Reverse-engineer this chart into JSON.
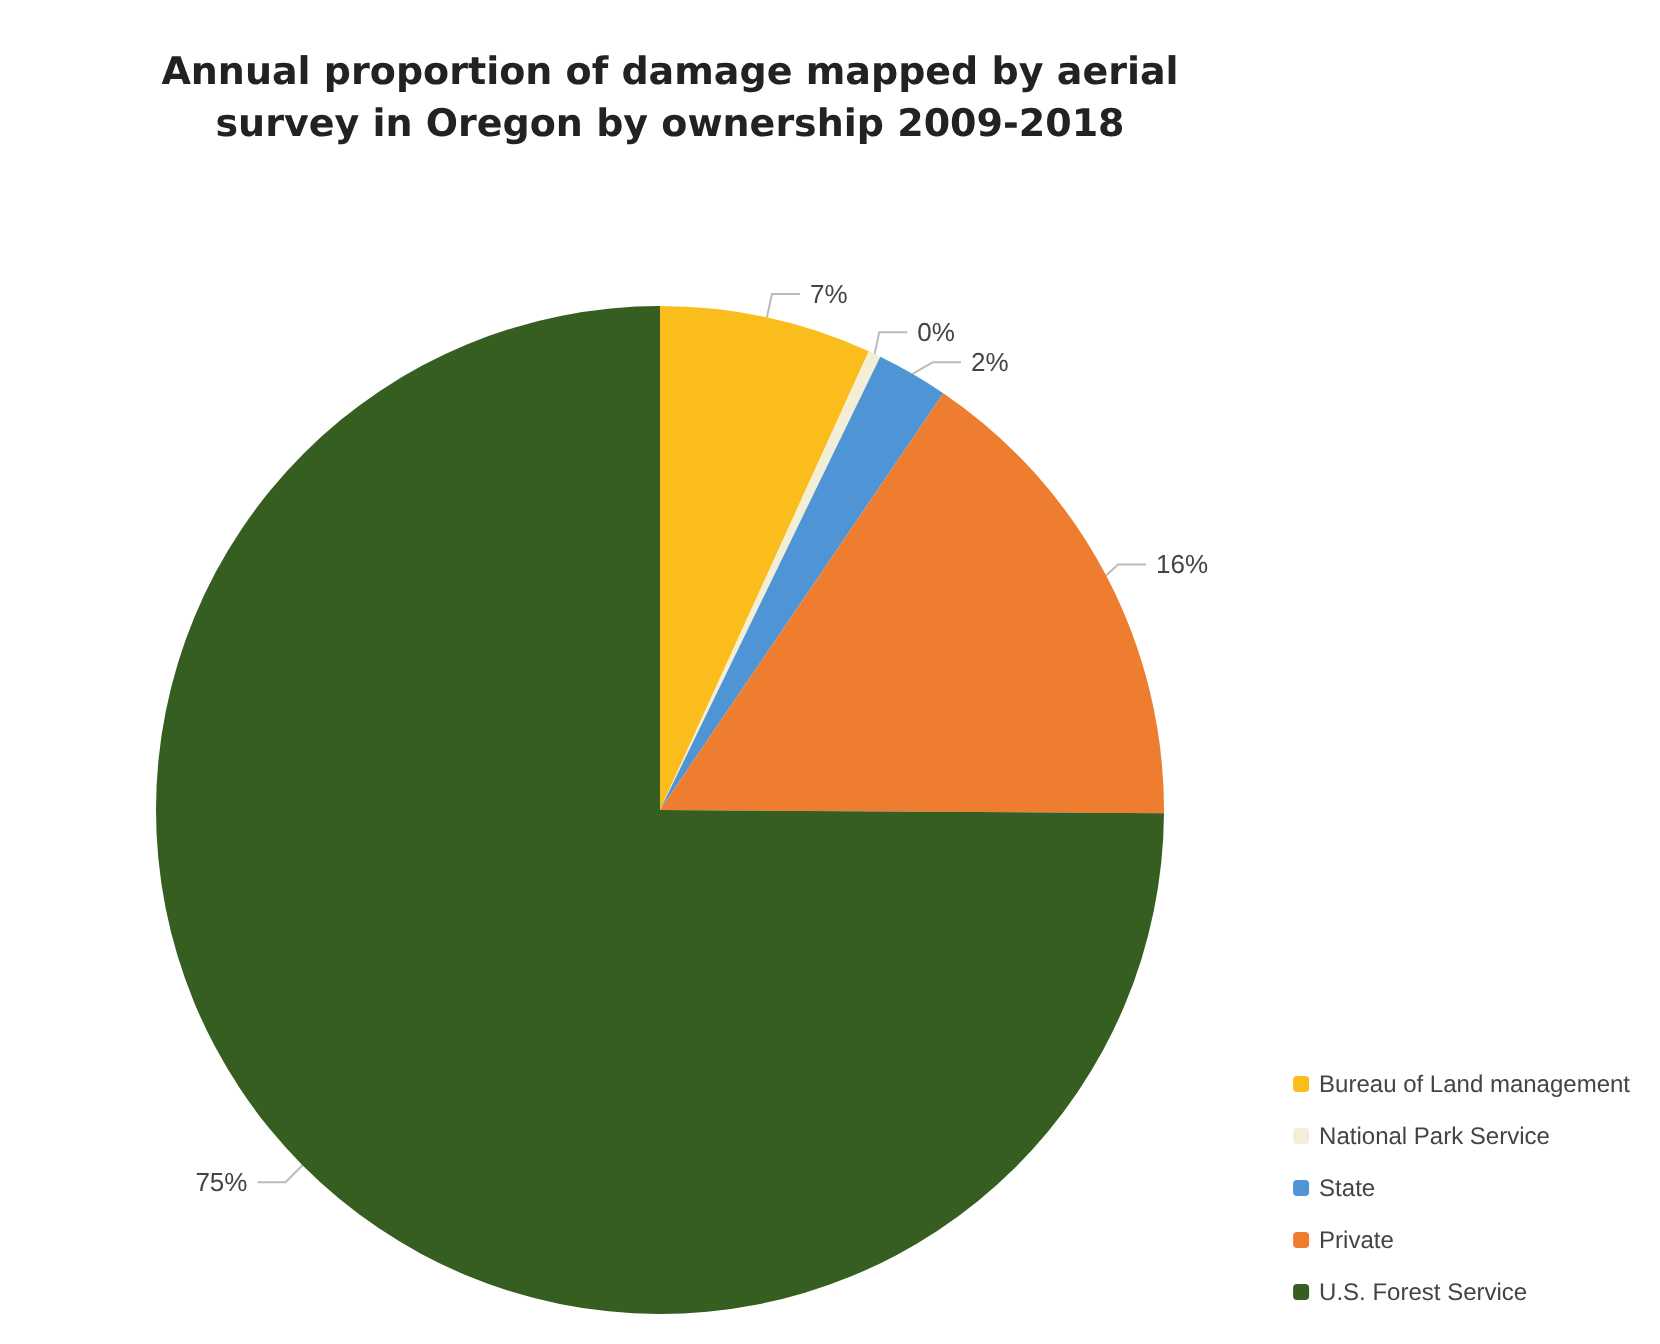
{
  "chart_data": {
    "type": "pie",
    "title": "Annual proportion of damage mapped by aerial\nsurvey in Oregon by ownership 2009-2018",
    "categories": [
      "Bureau of Land management",
      "National Park Service",
      "State",
      "Private",
      "U.S. Forest Service"
    ],
    "values": [
      6.8,
      0.4,
      2.3,
      15.6,
      74.9
    ],
    "value_labels": [
      "7%",
      "0%",
      "2%",
      "16%",
      "75%"
    ],
    "colors": [
      "#fbbd1c",
      "#f3eed6",
      "#4f94d4",
      "#ee7d30",
      "#355e20"
    ],
    "legend": "bottom right"
  }
}
